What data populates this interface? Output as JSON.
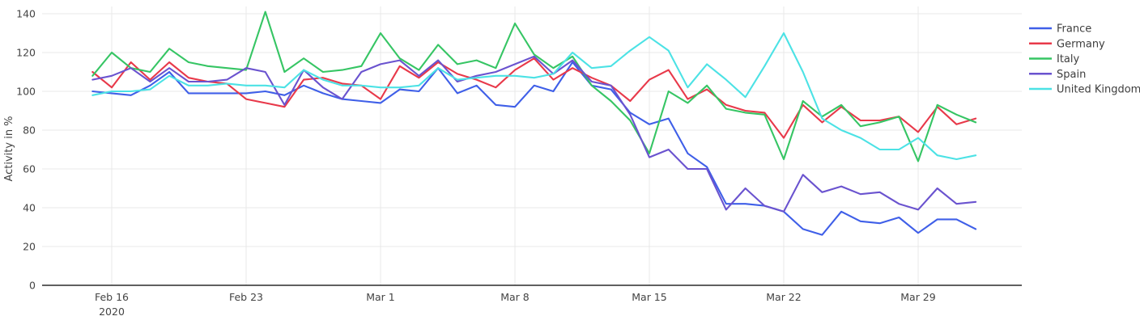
{
  "chart_data": {
    "type": "line",
    "title": "",
    "xlabel": "",
    "ylabel": "Activity in %",
    "ylim": [
      0,
      145
    ],
    "yticks": [
      0,
      20,
      40,
      60,
      80,
      100,
      120,
      140
    ],
    "grid": true,
    "legend_position": "top-right",
    "colors": {
      "grid": "#e8e8e8",
      "axis_line": "#2b2b2b",
      "tick_text": "#444444"
    },
    "x": [
      "Feb 15",
      "Feb 16",
      "Feb 17",
      "Feb 18",
      "Feb 19",
      "Feb 20",
      "Feb 21",
      "Feb 22",
      "Feb 23",
      "Feb 24",
      "Feb 25",
      "Feb 26",
      "Feb 27",
      "Feb 28",
      "Feb 29",
      "Mar 1",
      "Mar 2",
      "Mar 3",
      "Mar 4",
      "Mar 5",
      "Mar 6",
      "Mar 7",
      "Mar 8",
      "Mar 9",
      "Mar 10",
      "Mar 11",
      "Mar 12",
      "Mar 13",
      "Mar 14",
      "Mar 15",
      "Mar 16",
      "Mar 17",
      "Mar 18",
      "Mar 19",
      "Mar 20",
      "Mar 21",
      "Mar 22",
      "Mar 23",
      "Mar 24",
      "Mar 25",
      "Mar 26",
      "Mar 27",
      "Mar 28",
      "Mar 29",
      "Mar 30",
      "Mar 31",
      "Apr 1"
    ],
    "x_tick_labels": [
      {
        "label": "Feb 16",
        "sublabel": "2020",
        "index": 1
      },
      {
        "label": "Feb 23",
        "sublabel": "",
        "index": 8
      },
      {
        "label": "Mar 1",
        "sublabel": "",
        "index": 15
      },
      {
        "label": "Mar 8",
        "sublabel": "",
        "index": 22
      },
      {
        "label": "Mar 15",
        "sublabel": "",
        "index": 29
      },
      {
        "label": "Mar 22",
        "sublabel": "",
        "index": 36
      },
      {
        "label": "Mar 29",
        "sublabel": "",
        "index": 43
      }
    ],
    "series": [
      {
        "name": "France",
        "color": "#3f5fe8",
        "values": [
          100,
          99,
          98,
          103,
          110,
          99,
          99,
          99,
          99,
          100,
          98,
          103,
          99,
          96,
          95,
          94,
          101,
          100,
          112,
          99,
          103,
          93,
          92,
          103,
          100,
          115,
          103,
          101,
          89,
          83,
          86,
          68,
          61,
          42,
          42,
          41,
          38,
          29,
          26,
          38,
          33,
          32,
          35,
          27,
          34,
          34,
          29
        ]
      },
      {
        "name": "Germany",
        "color": "#e8394a",
        "values": [
          110,
          102,
          115,
          106,
          115,
          107,
          105,
          104,
          96,
          94,
          92,
          106,
          107,
          104,
          103,
          96,
          113,
          107,
          115,
          109,
          106,
          102,
          111,
          117,
          106,
          112,
          107,
          103,
          95,
          106,
          111,
          96,
          101,
          93,
          90,
          89,
          76,
          93,
          84,
          92,
          85,
          85,
          87,
          79,
          92,
          83,
          86
        ]
      },
      {
        "name": "Italy",
        "color": "#36c564",
        "values": [
          108,
          120,
          112,
          110,
          122,
          115,
          113,
          112,
          111,
          141,
          110,
          117,
          110,
          111,
          113,
          130,
          117,
          111,
          124,
          114,
          116,
          112,
          135,
          119,
          112,
          118,
          103,
          95,
          85,
          68,
          100,
          94,
          103,
          91,
          89,
          88,
          65,
          95,
          87,
          93,
          82,
          84,
          87,
          64,
          93,
          88,
          84
        ]
      },
      {
        "name": "Spain",
        "color": "#6a53cf",
        "values": [
          106,
          108,
          112,
          105,
          112,
          105,
          105,
          106,
          112,
          110,
          93,
          111,
          102,
          96,
          110,
          114,
          116,
          108,
          116,
          105,
          108,
          110,
          114,
          118,
          109,
          116,
          105,
          103,
          88,
          66,
          70,
          60,
          60,
          39,
          50,
          41,
          38,
          57,
          48,
          51,
          47,
          48,
          42,
          39,
          50,
          42,
          43
        ]
      },
      {
        "name": "United Kingdom",
        "color": "#4ce2e5",
        "values": [
          98,
          100,
          100,
          101,
          108,
          103,
          103,
          104,
          103,
          103,
          102,
          111,
          106,
          103,
          103,
          102,
          102,
          103,
          112,
          106,
          107,
          108,
          108,
          107,
          109,
          120,
          112,
          113,
          121,
          128,
          121,
          102,
          114,
          106,
          97,
          113,
          130,
          110,
          86,
          80,
          76,
          70,
          70,
          76,
          67,
          65,
          67
        ]
      }
    ]
  }
}
